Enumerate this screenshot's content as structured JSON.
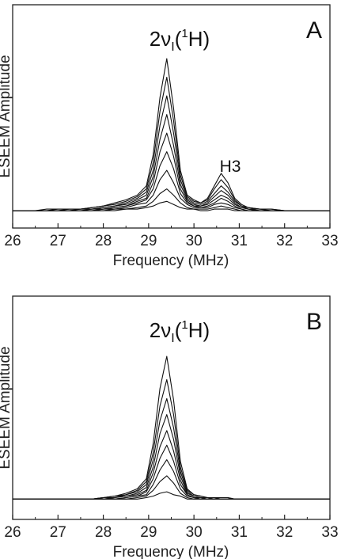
{
  "chart_data": [
    {
      "type": "line",
      "panel_label": "A",
      "title": "",
      "xlabel": "Frequency (MHz)",
      "ylabel": "ESEEM Amplitude",
      "xlim": [
        26,
        33
      ],
      "ylim": [
        0,
        1.0
      ],
      "xticks": [
        "26",
        "27",
        "28",
        "29",
        "30",
        "31",
        "32",
        "33"
      ],
      "grid": false,
      "legend": "none",
      "color": "#111111",
      "annotations": [
        {
          "id": "proton",
          "prefix": "2",
          "nu": "ν",
          "sub": "I",
          "open": "(",
          "sup": "1",
          "element": "H",
          "close": ")",
          "x": 29.4
        },
        {
          "id": "h3",
          "text": "H3",
          "x": 30.6
        }
      ],
      "x": [
        26,
        26.25,
        26.5,
        26.75,
        27,
        27.25,
        27.5,
        27.75,
        28,
        28.25,
        28.5,
        28.75,
        28.95,
        29.1,
        29.25,
        29.4,
        29.55,
        29.7,
        29.85,
        30.0,
        30.15,
        30.3,
        30.45,
        30.6,
        30.75,
        30.9,
        31.05,
        31.2,
        31.45,
        31.7,
        32,
        32.25,
        32.5,
        32.75,
        33
      ],
      "series": [
        {
          "values": [
            0.02,
            0.02,
            0.02,
            0.03,
            0.03,
            0.03,
            0.03,
            0.04,
            0.05,
            0.07,
            0.09,
            0.12,
            0.18,
            0.38,
            0.75,
            1.0,
            0.68,
            0.28,
            0.12,
            0.09,
            0.07,
            0.1,
            0.18,
            0.26,
            0.2,
            0.1,
            0.06,
            0.04,
            0.03,
            0.03,
            0.02,
            0.02,
            0.02,
            0.02,
            0.02
          ]
        },
        {
          "values": [
            0.02,
            0.02,
            0.02,
            0.02,
            0.03,
            0.03,
            0.03,
            0.04,
            0.05,
            0.06,
            0.08,
            0.11,
            0.16,
            0.33,
            0.66,
            0.88,
            0.6,
            0.25,
            0.11,
            0.08,
            0.07,
            0.09,
            0.16,
            0.22,
            0.17,
            0.09,
            0.05,
            0.04,
            0.03,
            0.03,
            0.02,
            0.02,
            0.02,
            0.02,
            0.02
          ]
        },
        {
          "values": [
            0.02,
            0.02,
            0.02,
            0.02,
            0.02,
            0.03,
            0.03,
            0.03,
            0.04,
            0.05,
            0.07,
            0.1,
            0.14,
            0.28,
            0.57,
            0.76,
            0.52,
            0.22,
            0.1,
            0.07,
            0.06,
            0.08,
            0.13,
            0.18,
            0.14,
            0.08,
            0.05,
            0.03,
            0.03,
            0.02,
            0.02,
            0.02,
            0.02,
            0.02,
            0.02
          ]
        },
        {
          "values": [
            0.02,
            0.02,
            0.02,
            0.02,
            0.02,
            0.02,
            0.03,
            0.03,
            0.04,
            0.05,
            0.06,
            0.09,
            0.12,
            0.24,
            0.48,
            0.64,
            0.44,
            0.19,
            0.09,
            0.06,
            0.05,
            0.07,
            0.11,
            0.15,
            0.12,
            0.07,
            0.04,
            0.03,
            0.02,
            0.02,
            0.02,
            0.02,
            0.02,
            0.02,
            0.02
          ]
        },
        {
          "values": [
            0.02,
            0.02,
            0.02,
            0.02,
            0.02,
            0.02,
            0.02,
            0.03,
            0.03,
            0.04,
            0.05,
            0.08,
            0.1,
            0.2,
            0.4,
            0.52,
            0.37,
            0.16,
            0.08,
            0.05,
            0.05,
            0.06,
            0.09,
            0.12,
            0.1,
            0.06,
            0.04,
            0.03,
            0.02,
            0.02,
            0.02,
            0.02,
            0.02,
            0.02,
            0.02
          ]
        },
        {
          "values": [
            0.02,
            0.02,
            0.02,
            0.02,
            0.02,
            0.02,
            0.02,
            0.02,
            0.03,
            0.04,
            0.05,
            0.07,
            0.09,
            0.16,
            0.31,
            0.4,
            0.29,
            0.13,
            0.07,
            0.05,
            0.04,
            0.05,
            0.07,
            0.1,
            0.08,
            0.05,
            0.03,
            0.02,
            0.02,
            0.02,
            0.02,
            0.02,
            0.02,
            0.02,
            0.02
          ]
        },
        {
          "values": [
            0.02,
            0.02,
            0.02,
            0.02,
            0.02,
            0.02,
            0.02,
            0.02,
            0.03,
            0.03,
            0.04,
            0.06,
            0.07,
            0.12,
            0.22,
            0.28,
            0.2,
            0.1,
            0.06,
            0.04,
            0.04,
            0.04,
            0.06,
            0.07,
            0.06,
            0.04,
            0.03,
            0.02,
            0.02,
            0.02,
            0.02,
            0.02,
            0.02,
            0.02,
            0.02
          ]
        },
        {
          "values": [
            0.02,
            0.02,
            0.02,
            0.02,
            0.02,
            0.02,
            0.02,
            0.02,
            0.02,
            0.03,
            0.03,
            0.04,
            0.05,
            0.08,
            0.13,
            0.16,
            0.12,
            0.07,
            0.04,
            0.03,
            0.03,
            0.03,
            0.04,
            0.05,
            0.04,
            0.03,
            0.02,
            0.02,
            0.02,
            0.02,
            0.02,
            0.02,
            0.02,
            0.02,
            0.02
          ]
        },
        {
          "values": [
            0.02,
            0.02,
            0.02,
            0.02,
            0.02,
            0.02,
            0.02,
            0.02,
            0.02,
            0.02,
            0.03,
            0.03,
            0.04,
            0.05,
            0.07,
            0.08,
            0.06,
            0.04,
            0.03,
            0.03,
            0.02,
            0.02,
            0.03,
            0.03,
            0.03,
            0.02,
            0.02,
            0.02,
            0.02,
            0.02,
            0.02,
            0.02,
            0.02,
            0.02,
            0.02
          ]
        }
      ]
    },
    {
      "type": "line",
      "panel_label": "B",
      "title": "",
      "xlabel": "Frequency (MHz)",
      "ylabel": "ESEEM Amplitude",
      "xlim": [
        26,
        33
      ],
      "ylim": [
        0,
        1.0
      ],
      "xticks": [
        "26",
        "27",
        "28",
        "29",
        "30",
        "31",
        "32",
        "33"
      ],
      "grid": false,
      "legend": "none",
      "color": "#111111",
      "annotations": [
        {
          "id": "proton",
          "prefix": "2",
          "nu": "ν",
          "sub": "I",
          "open": "(",
          "sup": "1",
          "element": "H",
          "close": ")",
          "x": 29.4
        }
      ],
      "x": [
        26,
        26.25,
        26.5,
        26.75,
        27,
        27.25,
        27.5,
        27.75,
        28,
        28.25,
        28.5,
        28.75,
        28.95,
        29.1,
        29.25,
        29.4,
        29.55,
        29.7,
        29.85,
        30.0,
        30.15,
        30.3,
        30.45,
        30.6,
        30.75,
        30.9,
        31.05,
        31.2,
        31.45,
        31.7,
        32,
        32.25,
        32.5,
        32.75,
        33
      ],
      "series": [
        {
          "values": [
            0.02,
            0.02,
            0.02,
            0.02,
            0.02,
            0.02,
            0.02,
            0.02,
            0.03,
            0.04,
            0.06,
            0.09,
            0.16,
            0.4,
            0.78,
            1.0,
            0.7,
            0.28,
            0.09,
            0.05,
            0.04,
            0.03,
            0.03,
            0.03,
            0.03,
            0.02,
            0.02,
            0.02,
            0.02,
            0.02,
            0.02,
            0.02,
            0.02,
            0.02,
            0.02
          ]
        },
        {
          "values": [
            0.02,
            0.02,
            0.02,
            0.02,
            0.02,
            0.02,
            0.02,
            0.02,
            0.03,
            0.04,
            0.05,
            0.08,
            0.14,
            0.34,
            0.66,
            0.84,
            0.6,
            0.24,
            0.08,
            0.05,
            0.04,
            0.03,
            0.03,
            0.03,
            0.03,
            0.02,
            0.02,
            0.02,
            0.02,
            0.02,
            0.02,
            0.02,
            0.02,
            0.02,
            0.02
          ]
        },
        {
          "values": [
            0.02,
            0.02,
            0.02,
            0.02,
            0.02,
            0.02,
            0.02,
            0.02,
            0.03,
            0.03,
            0.05,
            0.07,
            0.12,
            0.29,
            0.56,
            0.71,
            0.51,
            0.21,
            0.07,
            0.04,
            0.03,
            0.03,
            0.03,
            0.02,
            0.02,
            0.02,
            0.02,
            0.02,
            0.02,
            0.02,
            0.02,
            0.02,
            0.02,
            0.02,
            0.02
          ]
        },
        {
          "values": [
            0.02,
            0.02,
            0.02,
            0.02,
            0.02,
            0.02,
            0.02,
            0.02,
            0.02,
            0.03,
            0.04,
            0.06,
            0.1,
            0.24,
            0.47,
            0.6,
            0.43,
            0.18,
            0.06,
            0.04,
            0.03,
            0.03,
            0.02,
            0.02,
            0.02,
            0.02,
            0.02,
            0.02,
            0.02,
            0.02,
            0.02,
            0.02,
            0.02,
            0.02,
            0.02
          ]
        },
        {
          "values": [
            0.02,
            0.02,
            0.02,
            0.02,
            0.02,
            0.02,
            0.02,
            0.02,
            0.02,
            0.03,
            0.04,
            0.05,
            0.08,
            0.2,
            0.38,
            0.49,
            0.35,
            0.15,
            0.05,
            0.03,
            0.03,
            0.02,
            0.02,
            0.02,
            0.02,
            0.02,
            0.02,
            0.02,
            0.02,
            0.02,
            0.02,
            0.02,
            0.02,
            0.02,
            0.02
          ]
        },
        {
          "values": [
            0.02,
            0.02,
            0.02,
            0.02,
            0.02,
            0.02,
            0.02,
            0.02,
            0.02,
            0.02,
            0.03,
            0.04,
            0.07,
            0.16,
            0.3,
            0.39,
            0.28,
            0.12,
            0.05,
            0.03,
            0.02,
            0.02,
            0.02,
            0.02,
            0.02,
            0.02,
            0.02,
            0.02,
            0.02,
            0.02,
            0.02,
            0.02,
            0.02,
            0.02,
            0.02
          ]
        },
        {
          "values": [
            0.02,
            0.02,
            0.02,
            0.02,
            0.02,
            0.02,
            0.02,
            0.02,
            0.02,
            0.02,
            0.03,
            0.04,
            0.05,
            0.12,
            0.22,
            0.29,
            0.21,
            0.09,
            0.04,
            0.03,
            0.02,
            0.02,
            0.02,
            0.02,
            0.02,
            0.02,
            0.02,
            0.02,
            0.02,
            0.02,
            0.02,
            0.02,
            0.02,
            0.02,
            0.02
          ]
        },
        {
          "values": [
            0.02,
            0.02,
            0.02,
            0.02,
            0.02,
            0.02,
            0.02,
            0.02,
            0.02,
            0.02,
            0.02,
            0.03,
            0.04,
            0.08,
            0.14,
            0.18,
            0.13,
            0.06,
            0.03,
            0.02,
            0.02,
            0.02,
            0.02,
            0.02,
            0.02,
            0.02,
            0.02,
            0.02,
            0.02,
            0.02,
            0.02,
            0.02,
            0.02,
            0.02,
            0.02
          ]
        },
        {
          "values": [
            0.02,
            0.02,
            0.02,
            0.02,
            0.02,
            0.02,
            0.02,
            0.02,
            0.02,
            0.02,
            0.02,
            0.02,
            0.03,
            0.04,
            0.06,
            0.07,
            0.05,
            0.04,
            0.02,
            0.02,
            0.02,
            0.02,
            0.02,
            0.02,
            0.02,
            0.02,
            0.02,
            0.02,
            0.02,
            0.02,
            0.02,
            0.02,
            0.02,
            0.02,
            0.02
          ]
        }
      ]
    }
  ]
}
